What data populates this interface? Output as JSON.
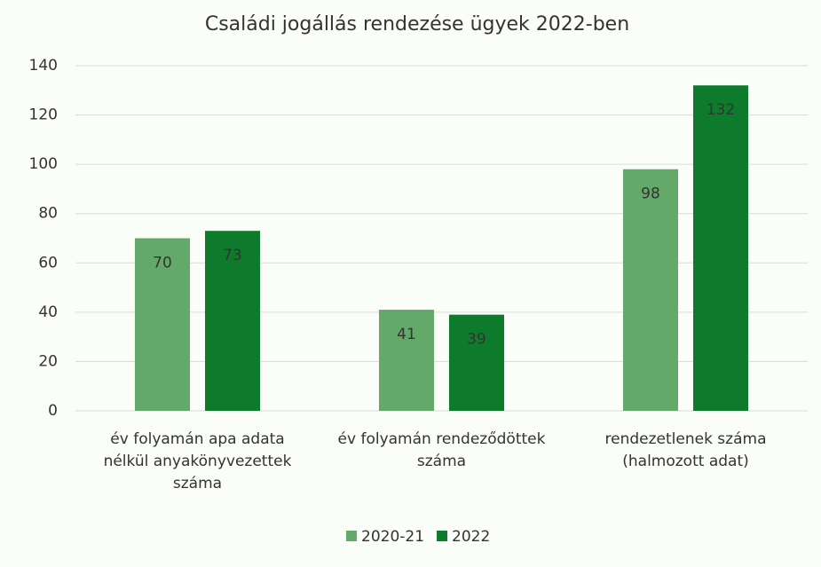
{
  "chart_data": {
    "type": "bar",
    "title": "Családi jogállás rendezése ügyek 2022-ben",
    "categories": [
      "év folyamán apa adata nélkül anyakönyvezettek száma",
      "év folyamán rendeződöttek száma",
      "rendezetlenek száma (halmozott adat)"
    ],
    "series": [
      {
        "name": "2020-21",
        "color": "#62a96a",
        "values": [
          70,
          41,
          98
        ]
      },
      {
        "name": "2022",
        "color": "#0e7a2c",
        "values": [
          73,
          39,
          132
        ]
      }
    ],
    "ylim": [
      0,
      140
    ],
    "yticks": [
      0,
      20,
      40,
      60,
      80,
      100,
      120,
      140
    ],
    "grid": true,
    "legend": "bottom"
  }
}
